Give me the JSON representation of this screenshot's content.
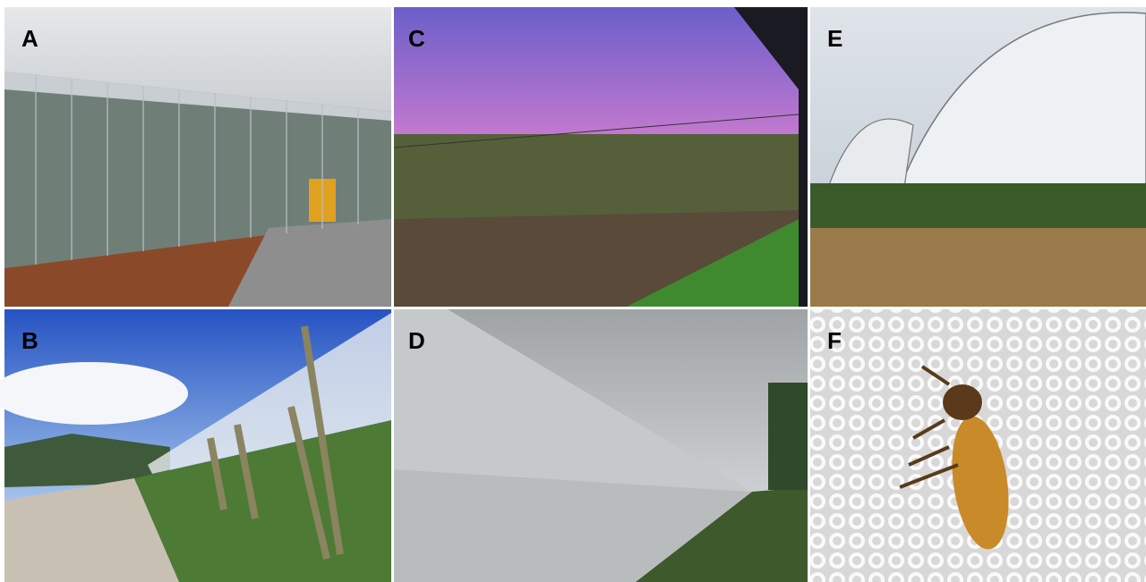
{
  "panels": [
    {
      "label": "A"
    },
    {
      "label": "C"
    },
    {
      "label": "E"
    },
    {
      "label": "B"
    },
    {
      "label": "D"
    },
    {
      "label": "F"
    }
  ]
}
